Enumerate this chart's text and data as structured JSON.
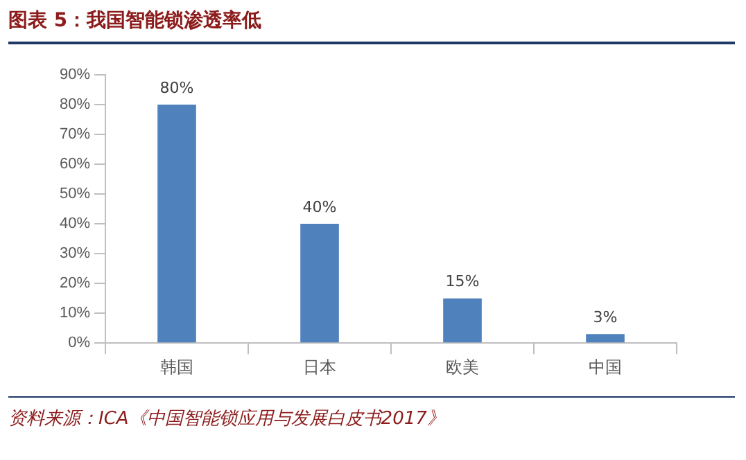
{
  "chart_data": {
    "type": "bar",
    "title": "图表 5：我国智能锁渗透率低",
    "categories": [
      "韩国",
      "日本",
      "欧美",
      "中国"
    ],
    "values": [
      80,
      40,
      15,
      3
    ],
    "value_labels": [
      "80%",
      "40%",
      "15%",
      "3%"
    ],
    "color": "#4f81bd",
    "ylim": [
      0,
      90
    ],
    "yticks": [
      {
        "value": 0,
        "label": "0%"
      },
      {
        "value": 10,
        "label": "10%"
      },
      {
        "value": 20,
        "label": "20%"
      },
      {
        "value": 30,
        "label": "30%"
      },
      {
        "value": 40,
        "label": "40%"
      },
      {
        "value": 50,
        "label": "50%"
      },
      {
        "value": 60,
        "label": "60%"
      },
      {
        "value": 70,
        "label": "70%"
      },
      {
        "value": 80,
        "label": "80%"
      },
      {
        "value": 90,
        "label": "90%"
      }
    ],
    "grid": false,
    "legend": false,
    "annotations": [
      "资料来源：ICA《中国智能锁应用与发展白皮书2017》"
    ]
  }
}
